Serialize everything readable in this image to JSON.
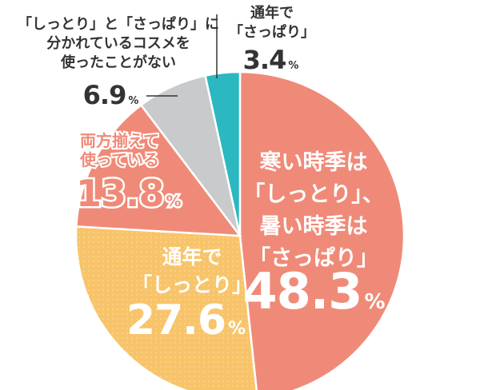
{
  "chart_data": {
    "type": "pie",
    "title": "",
    "slices": [
      {
        "label_lines": [
          "寒い時季は",
          "「しっとり」、",
          "暑い時季は",
          "「さっぱり」"
        ],
        "value": 48.3,
        "value_text": "48.3",
        "unit": "%",
        "color": "#f08a78"
      },
      {
        "label_lines": [
          "通年で",
          "「しっとり」"
        ],
        "value": 27.6,
        "value_text": "27.6",
        "unit": "%",
        "color": "#f8c46a"
      },
      {
        "label_lines": [
          "両方揃えて",
          "使っている"
        ],
        "value": 13.8,
        "value_text": "13.8",
        "unit": "%",
        "color": "#f08a78"
      },
      {
        "label_lines": [
          "「しっとり」と「さっぱり」に",
          "分かれているコスメを",
          "使ったことがない"
        ],
        "value": 6.9,
        "value_text": "6.9",
        "unit": "%",
        "color": "#c9cacc"
      },
      {
        "label_lines": [
          "通年で",
          "「さっぱり」"
        ],
        "value": 3.4,
        "value_text": "3.4",
        "unit": "%",
        "color": "#2bb8c0"
      }
    ]
  }
}
